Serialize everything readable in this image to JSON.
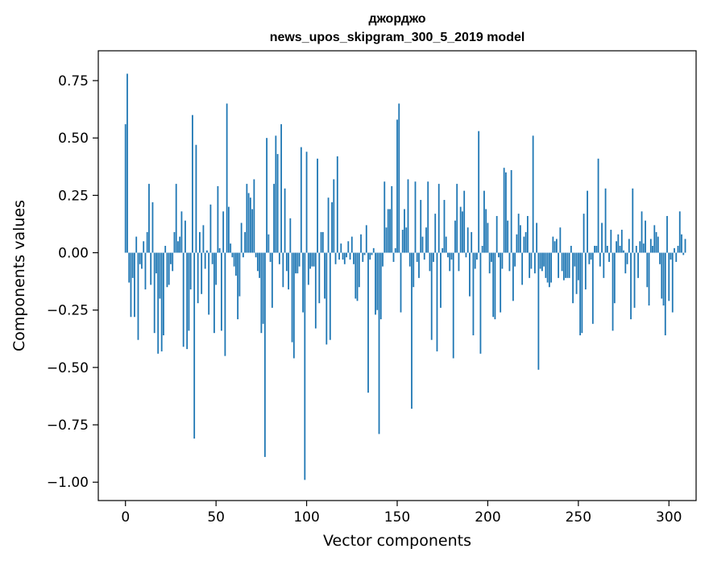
{
  "chart_data": {
    "type": "bar",
    "title_line1": "джорджо",
    "title_line2": "news_upos_skipgram_300_5_2019 model",
    "xlabel": "Vector components",
    "ylabel": "Components values",
    "xlim": [
      -15,
      315
    ],
    "ylim": [
      -1.08,
      0.88
    ],
    "x_ticks": [
      0,
      50,
      100,
      150,
      200,
      250,
      300
    ],
    "x_tick_labels": [
      "0",
      "50",
      "100",
      "150",
      "200",
      "250",
      "300"
    ],
    "y_ticks": [
      0.75,
      0.5,
      0.25,
      0.0,
      -0.25,
      -0.5,
      -0.75,
      -1.0
    ],
    "y_tick_labels": [
      "0.75",
      "0.50",
      "0.25",
      "0.00",
      "−0.25",
      "−0.50",
      "−0.75",
      "−1.00"
    ],
    "bar_color": "#1f77b4",
    "values": [
      0.56,
      0.78,
      -0.13,
      -0.28,
      -0.11,
      -0.28,
      0.07,
      -0.38,
      -0.05,
      -0.07,
      0.05,
      -0.16,
      0.09,
      0.3,
      -0.14,
      0.22,
      -0.35,
      -0.09,
      -0.44,
      -0.2,
      -0.43,
      -0.36,
      0.03,
      -0.15,
      -0.14,
      -0.05,
      -0.08,
      0.09,
      0.3,
      0.05,
      0.07,
      0.18,
      -0.41,
      0.14,
      -0.42,
      -0.34,
      -0.16,
      0.6,
      -0.81,
      0.47,
      -0.22,
      0.09,
      -0.18,
      0.12,
      -0.07,
      0.01,
      -0.27,
      0.21,
      -0.05,
      -0.35,
      -0.14,
      0.29,
      0.02,
      -0.34,
      0.18,
      -0.45,
      0.65,
      0.2,
      0.04,
      -0.02,
      -0.06,
      -0.1,
      -0.29,
      -0.19,
      0.13,
      -0.02,
      0.09,
      0.3,
      0.26,
      0.24,
      0.19,
      0.32,
      -0.02,
      -0.08,
      -0.11,
      -0.35,
      -0.31,
      -0.89,
      0.5,
      0.08,
      -0.04,
      -0.24,
      0.3,
      0.51,
      0.43,
      -0.05,
      0.56,
      -0.15,
      0.28,
      -0.08,
      -0.16,
      0.15,
      -0.39,
      -0.46,
      -0.09,
      -0.09,
      -0.06,
      0.46,
      -0.26,
      -0.99,
      0.44,
      -0.14,
      -0.07,
      -0.06,
      -0.06,
      -0.33,
      0.41,
      -0.22,
      0.09,
      0.09,
      -0.2,
      -0.4,
      0.24,
      -0.38,
      0.22,
      0.32,
      -0.05,
      0.42,
      -0.03,
      0.04,
      -0.03,
      -0.05,
      -0.02,
      0.05,
      -0.03,
      0.07,
      -0.05,
      -0.2,
      -0.21,
      -0.15,
      0.08,
      -0.04,
      -0.01,
      0.12,
      -0.61,
      -0.03,
      -0.01,
      0.02,
      -0.27,
      -0.25,
      -0.79,
      -0.29,
      -0.06,
      0.31,
      0.11,
      0.19,
      0.19,
      0.29,
      -0.04,
      0.02,
      0.58,
      0.65,
      -0.26,
      0.1,
      0.19,
      0.11,
      0.32,
      -0.06,
      -0.68,
      -0.15,
      0.31,
      -0.04,
      -0.11,
      0.23,
      0.07,
      -0.03,
      0.11,
      0.31,
      -0.08,
      -0.38,
      -0.04,
      0.17,
      -0.43,
      0.3,
      -0.24,
      0.02,
      0.23,
      0.07,
      -0.02,
      -0.08,
      -0.03,
      -0.46,
      0.14,
      0.3,
      -0.08,
      0.2,
      0.18,
      0.27,
      -0.02,
      0.11,
      -0.19,
      0.09,
      -0.36,
      -0.07,
      -0.03,
      0.53,
      -0.44,
      0.03,
      0.27,
      0.19,
      0.13,
      -0.09,
      -0.04,
      -0.28,
      -0.29,
      0.16,
      -0.02,
      -0.26,
      -0.07,
      0.37,
      0.35,
      0.14,
      -0.08,
      0.36,
      -0.21,
      -0.06,
      0.08,
      0.17,
      0.12,
      -0.14,
      0.07,
      0.09,
      0.16,
      -0.11,
      -0.07,
      0.51,
      -0.09,
      0.13,
      -0.51,
      -0.07,
      -0.08,
      -0.06,
      -0.11,
      -0.13,
      -0.15,
      -0.13,
      0.07,
      0.05,
      0.06,
      -0.11,
      0.11,
      -0.08,
      -0.12,
      -0.11,
      -0.11,
      -0.11,
      0.03,
      -0.22,
      -0.06,
      -0.18,
      -0.12,
      -0.36,
      -0.35,
      0.17,
      -0.16,
      0.27,
      -0.05,
      -0.03,
      -0.31,
      0.03,
      0.03,
      0.41,
      -0.06,
      0.13,
      -0.11,
      0.28,
      0.03,
      -0.04,
      0.1,
      -0.34,
      -0.22,
      0.05,
      0.08,
      0.03,
      0.1,
      0.01,
      -0.09,
      -0.05,
      0.06,
      -0.29,
      0.28,
      -0.24,
      0.03,
      -0.11,
      0.05,
      0.18,
      0.04,
      0.14,
      -0.15,
      -0.23,
      0.06,
      0.03,
      0.12,
      0.09,
      0.07,
      -0.05,
      -0.2,
      -0.23,
      -0.36,
      0.16,
      -0.21,
      -0.03,
      -0.26,
      0.02,
      -0.04,
      0.03,
      0.18,
      0.08,
      -0.01,
      0.06
    ]
  }
}
